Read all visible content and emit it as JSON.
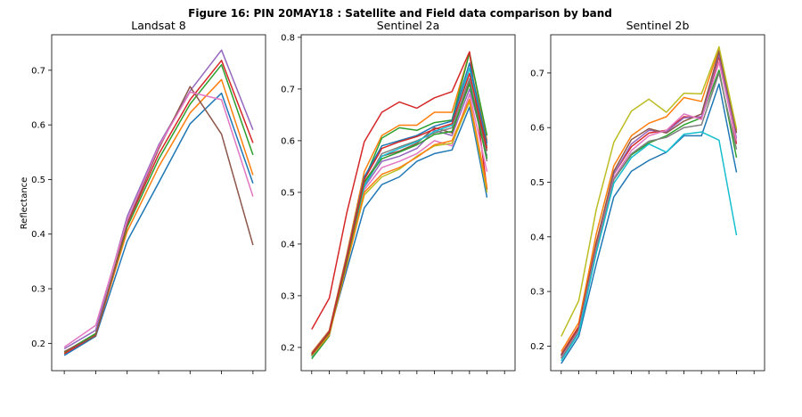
{
  "chart_data": {
    "title": "Figure 16: PIN 20MAY18 : Satellite and Field data comparison by band",
    "ylabel": "Reflectance",
    "colors": [
      "#1f77b4",
      "#ff7f0e",
      "#2ca02c",
      "#d62728",
      "#9467bd",
      "#8c564b",
      "#e377c2",
      "#7f7f7f",
      "#bcbd22",
      "#17becf"
    ],
    "panels": [
      {
        "type": "line",
        "title": "Landsat 8",
        "ylim": [
          0.15,
          0.765
        ],
        "yticks": [
          0.2,
          0.3,
          0.4,
          0.5,
          0.6,
          0.7
        ],
        "x": [
          1,
          2,
          3,
          4,
          5,
          6,
          7
        ],
        "xlim": [
          0.6,
          7.4
        ],
        "series": [
          {
            "values": [
              0.178,
              0.213,
              0.387,
              0.494,
              0.602,
              0.658,
              0.493
            ]
          },
          {
            "values": [
              0.182,
              0.216,
              0.405,
              0.523,
              0.622,
              0.683,
              0.508
            ]
          },
          {
            "values": [
              0.184,
              0.218,
              0.413,
              0.537,
              0.638,
              0.71,
              0.545
            ]
          },
          {
            "values": [
              0.181,
              0.215,
              0.418,
              0.546,
              0.646,
              0.718,
              0.567
            ]
          },
          {
            "values": [
              0.19,
              0.224,
              0.432,
              0.563,
              0.662,
              0.737,
              0.591
            ]
          },
          {
            "values": [
              0.185,
              0.214,
              0.42,
              0.556,
              0.67,
              0.583,
              0.38
            ]
          },
          {
            "values": [
              0.193,
              0.233,
              0.425,
              0.56,
              0.66,
              0.646,
              0.469
            ]
          }
        ]
      },
      {
        "type": "line",
        "title": "Sentinel 2a",
        "ylim": [
          0.155,
          0.805
        ],
        "yticks": [
          0.2,
          0.3,
          0.4,
          0.5,
          0.6,
          0.7,
          0.8
        ],
        "x": [
          1,
          2,
          3,
          4,
          5,
          6,
          7,
          8,
          9,
          10,
          11,
          12
        ],
        "xlim": [
          0.4,
          12.6
        ],
        "series": [
          {
            "values": [
              0.185,
              0.228,
              0.35,
              0.47,
              0.515,
              0.53,
              0.56,
              0.575,
              0.582,
              0.665,
              0.49,
              null
            ]
          },
          {
            "values": [
              0.19,
              0.233,
              0.38,
              0.54,
              0.61,
              0.63,
              0.63,
              0.655,
              0.655,
              0.77,
              0.6,
              null
            ]
          },
          {
            "values": [
              0.178,
              0.222,
              0.372,
              0.525,
              0.605,
              0.625,
              0.62,
              0.635,
              0.64,
              0.77,
              0.61,
              null
            ]
          },
          {
            "values": [
              0.235,
              0.295,
              0.46,
              0.598,
              0.655,
              0.675,
              0.663,
              0.683,
              0.695,
              0.772,
              0.505,
              null
            ]
          },
          {
            "values": [
              0.183,
              0.225,
              0.365,
              0.51,
              0.56,
              0.57,
              0.585,
              0.62,
              0.61,
              0.7,
              0.57,
              null
            ]
          },
          {
            "values": [
              0.187,
              0.23,
              0.37,
              0.52,
              0.57,
              0.58,
              0.595,
              0.625,
              0.615,
              0.715,
              0.58,
              null
            ]
          },
          {
            "values": [
              0.183,
              0.226,
              0.362,
              0.505,
              0.548,
              0.56,
              0.575,
              0.6,
              0.59,
              0.69,
              0.54,
              null
            ]
          },
          {
            "values": [
              0.186,
              0.229,
              0.368,
              0.515,
              0.575,
              0.588,
              0.6,
              0.615,
              0.625,
              0.72,
              0.56,
              null
            ]
          },
          {
            "values": [
              0.184,
              0.225,
              0.36,
              0.495,
              0.53,
              0.545,
              0.57,
              0.59,
              0.595,
              0.675,
              0.5,
              null
            ]
          },
          {
            "values": [
              0.182,
              0.227,
              0.366,
              0.512,
              0.57,
              0.585,
              0.598,
              0.618,
              0.63,
              0.74,
              0.59,
              null
            ]
          },
          {
            "values": [
              0.188,
              0.231,
              0.375,
              0.53,
              0.59,
              0.6,
              0.61,
              0.628,
              0.638,
              0.75,
              0.595,
              null
            ]
          },
          {
            "values": [
              0.184,
              0.224,
              0.36,
              0.5,
              0.535,
              0.548,
              0.568,
              0.592,
              0.6,
              0.68,
              0.51,
              null
            ]
          },
          {
            "values": [
              0.186,
              0.228,
              0.366,
              0.52,
              0.565,
              0.578,
              0.592,
              0.612,
              0.618,
              0.71,
              0.565,
              null
            ]
          },
          {
            "values": [
              0.187,
              0.23,
              0.372,
              0.525,
              0.585,
              0.598,
              0.608,
              0.622,
              0.633,
              0.73,
              0.585,
              null
            ]
          }
        ]
      },
      {
        "type": "line",
        "title": "Sentinel 2b",
        "ylim": [
          0.155,
          0.77
        ],
        "yticks": [
          0.2,
          0.3,
          0.4,
          0.5,
          0.6,
          0.7
        ],
        "x": [
          1,
          2,
          3,
          4,
          5,
          6,
          7,
          8,
          9,
          10,
          11,
          12
        ],
        "xlim": [
          0.4,
          12.6
        ],
        "series": [
          {
            "values": [
              0.168,
              0.218,
              0.35,
              0.473,
              0.52,
              0.54,
              0.555,
              0.585,
              0.585,
              0.68,
              0.518,
              null
            ]
          },
          {
            "values": [
              0.19,
              0.243,
              0.405,
              0.53,
              0.585,
              0.608,
              0.62,
              0.655,
              0.648,
              0.745,
              0.595,
              null
            ]
          },
          {
            "values": [
              0.182,
              0.232,
              0.38,
              0.505,
              0.55,
              0.572,
              0.585,
              0.605,
              0.618,
              0.705,
              0.545,
              null
            ]
          },
          {
            "values": [
              0.185,
              0.236,
              0.39,
              0.515,
              0.565,
              0.59,
              0.595,
              0.62,
              0.618,
              0.73,
              0.57,
              null
            ]
          },
          {
            "values": [
              0.18,
              0.23,
              0.385,
              0.515,
              0.57,
              0.595,
              0.592,
              0.618,
              0.62,
              0.735,
              0.58,
              null
            ]
          },
          {
            "values": [
              0.183,
              0.232,
              0.388,
              0.52,
              0.578,
              0.598,
              0.59,
              0.612,
              0.625,
              0.74,
              0.59,
              null
            ]
          },
          {
            "values": [
              0.178,
              0.228,
              0.378,
              0.508,
              0.558,
              0.585,
              0.595,
              0.625,
              0.615,
              0.72,
              0.575,
              null
            ]
          },
          {
            "values": [
              0.177,
              0.226,
              0.375,
              0.505,
              0.552,
              0.575,
              0.582,
              0.6,
              0.605,
              0.7,
              0.56,
              null
            ]
          },
          {
            "values": [
              0.218,
              0.283,
              0.45,
              0.573,
              0.63,
              0.652,
              0.628,
              0.663,
              0.662,
              0.748,
              0.598,
              null
            ]
          },
          {
            "values": [
              0.173,
              0.224,
              0.37,
              0.498,
              0.545,
              0.57,
              0.555,
              0.588,
              0.592,
              0.577,
              0.403,
              null
            ]
          }
        ]
      }
    ]
  }
}
